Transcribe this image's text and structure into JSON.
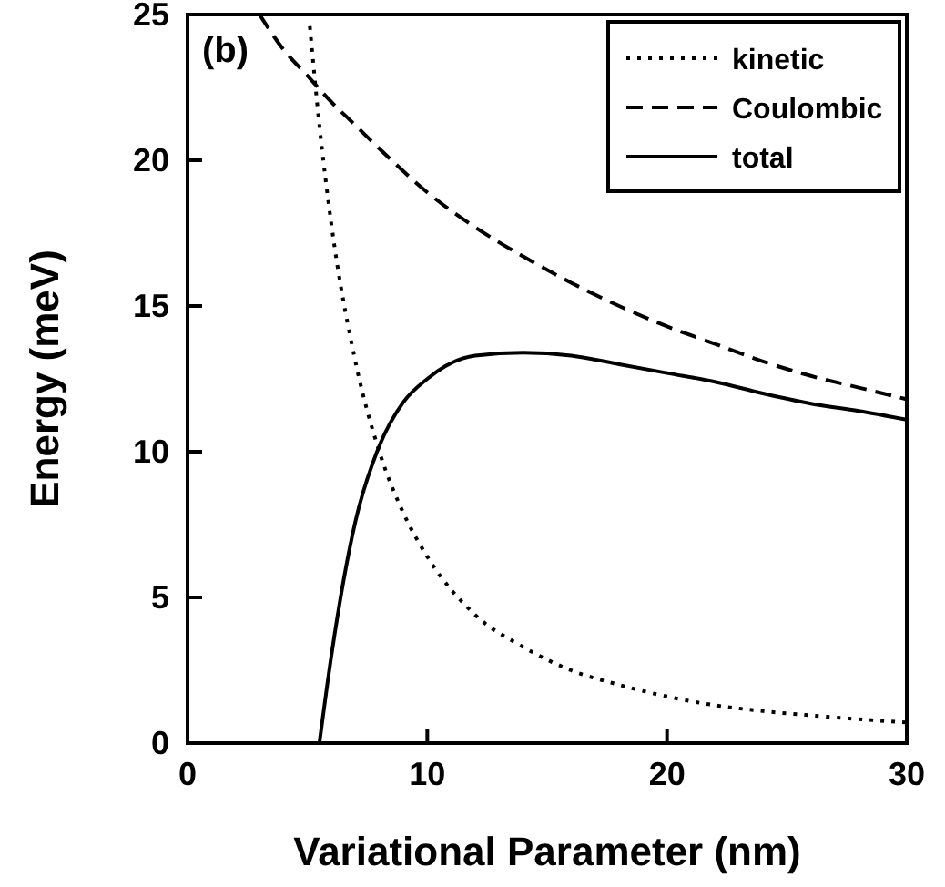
{
  "chart_data": {
    "type": "line",
    "xlabel": "Variational Parameter (nm)",
    "ylabel": "Energy (meV)",
    "xlim": [
      0,
      30
    ],
    "ylim": [
      0,
      25
    ],
    "xticks": [
      0,
      10,
      20,
      30
    ],
    "yticks": [
      0,
      5,
      10,
      15,
      20,
      25
    ],
    "grid": false,
    "legend": "top right",
    "marker": "none",
    "annotations": [
      "(b)"
    ],
    "series": [
      {
        "name": "kinetic",
        "color": "#000000",
        "line_style": "dotted",
        "x": [
          5.1,
          5.5,
          6,
          7,
          8,
          9,
          10,
          12,
          14,
          16,
          18,
          20,
          22,
          24,
          26,
          28,
          30
        ],
        "values": [
          24.6,
          21.2,
          17.8,
          13.1,
          10.0,
          7.9,
          6.4,
          4.4,
          3.3,
          2.5,
          2.0,
          1.6,
          1.3,
          1.1,
          0.95,
          0.82,
          0.71
        ]
      },
      {
        "name": "Coulombic",
        "color": "#000000",
        "line_style": "dashed",
        "x": [
          3,
          4,
          5,
          6,
          7,
          8,
          10,
          12,
          14,
          16,
          18,
          20,
          22,
          24,
          26,
          28,
          30
        ],
        "values": [
          25,
          23.8,
          22.9,
          22.0,
          21.2,
          20.4,
          18.9,
          17.7,
          16.7,
          15.8,
          15.0,
          14.3,
          13.7,
          13.1,
          12.6,
          12.2,
          11.8
        ]
      },
      {
        "name": "total",
        "color": "#000000",
        "line_style": "solid",
        "x": [
          5.5,
          6,
          7,
          8,
          9,
          10,
          12,
          14,
          16,
          18,
          20,
          22,
          24,
          26,
          28,
          30
        ],
        "values": [
          0,
          3.0,
          7.6,
          10.2,
          11.7,
          12.5,
          13.3,
          13.4,
          13.3,
          13.0,
          12.7,
          12.4,
          12.0,
          11.65,
          11.4,
          11.1
        ]
      }
    ]
  }
}
